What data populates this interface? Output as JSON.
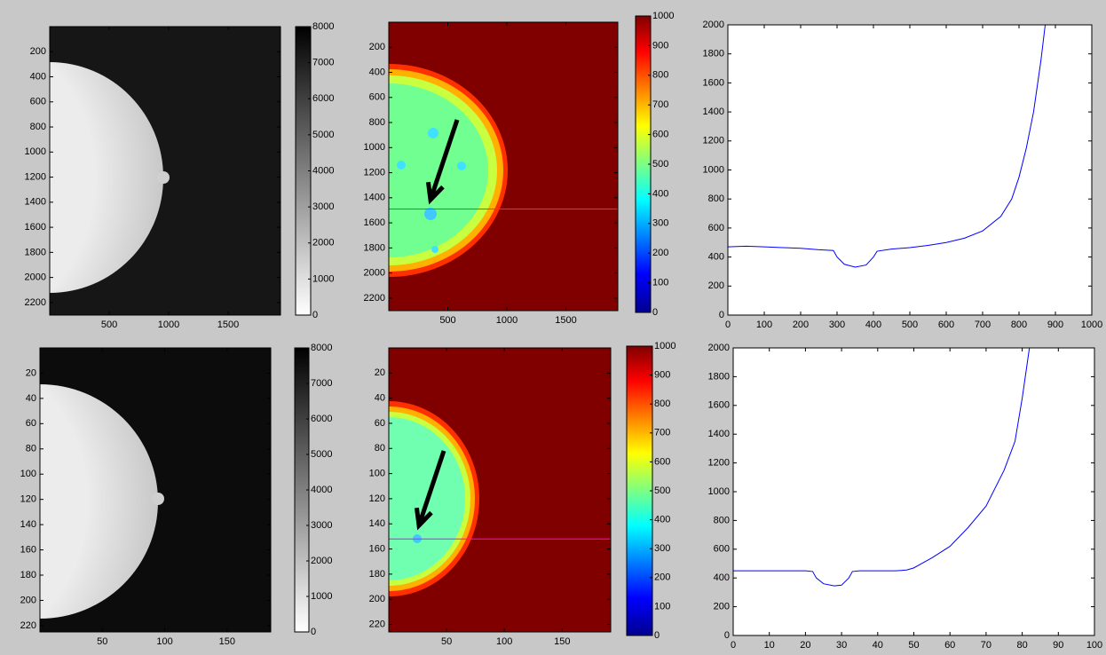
{
  "chart_data": [
    {
      "type": "image",
      "colormap": "gray-reversed",
      "y_reversed": true,
      "xlim": [
        0,
        1940
      ],
      "xticks": [
        500,
        1000,
        1500
      ],
      "ylim": [
        0,
        2300
      ],
      "yticks": [
        200,
        400,
        600,
        800,
        1000,
        1200,
        1400,
        1600,
        1800,
        2000,
        2200
      ],
      "clim": [
        0,
        8000
      ],
      "cticks": [
        0,
        1000,
        2000,
        3000,
        4000,
        5000,
        6000,
        7000,
        8000
      ]
    },
    {
      "type": "image",
      "colormap": "jet",
      "y_reversed": true,
      "xlim": [
        0,
        1940
      ],
      "xticks": [
        500,
        1000,
        1500
      ],
      "ylim": [
        0,
        2300
      ],
      "yticks": [
        200,
        400,
        600,
        800,
        1000,
        1200,
        1400,
        1600,
        1800,
        2000,
        2200
      ],
      "clim": [
        0,
        1000
      ],
      "cticks": [
        0,
        100,
        200,
        300,
        400,
        500,
        600,
        700,
        800,
        900,
        1000
      ],
      "profile_line": {
        "y": 1490,
        "color": "#ff00ff"
      }
    },
    {
      "type": "line",
      "color": "#0000ff",
      "x": [
        0,
        50,
        100,
        150,
        200,
        250,
        290,
        300,
        320,
        350,
        380,
        400,
        410,
        450,
        500,
        550,
        600,
        650,
        700,
        750,
        780,
        800,
        820,
        840,
        860,
        872
      ],
      "values": [
        470,
        475,
        470,
        465,
        460,
        450,
        445,
        400,
        350,
        330,
        345,
        400,
        440,
        455,
        465,
        480,
        500,
        530,
        580,
        680,
        800,
        950,
        1150,
        1400,
        1750,
        2000
      ],
      "xlim": [
        0,
        1000
      ],
      "xticks": [
        0,
        100,
        200,
        300,
        400,
        500,
        600,
        700,
        800,
        900,
        1000
      ],
      "ylim": [
        0,
        2000
      ],
      "yticks": [
        0,
        200,
        400,
        600,
        800,
        1000,
        1200,
        1400,
        1600,
        1800,
        2000
      ]
    },
    {
      "type": "image",
      "colormap": "gray-reversed",
      "y_reversed": true,
      "xlim": [
        0,
        185
      ],
      "xticks": [
        50,
        100,
        150
      ],
      "ylim": [
        0,
        225
      ],
      "yticks": [
        20,
        40,
        60,
        80,
        100,
        120,
        140,
        160,
        180,
        200,
        220
      ],
      "clim": [
        0,
        8000
      ],
      "cticks": [
        0,
        1000,
        2000,
        3000,
        4000,
        5000,
        6000,
        7000,
        8000
      ]
    },
    {
      "type": "image",
      "colormap": "jet",
      "y_reversed": true,
      "xlim": [
        0,
        192
      ],
      "xticks": [
        50,
        100,
        150
      ],
      "ylim": [
        0,
        226
      ],
      "yticks": [
        20,
        40,
        60,
        80,
        100,
        120,
        140,
        160,
        180,
        200,
        220
      ],
      "clim": [
        0,
        1000
      ],
      "cticks": [
        0,
        100,
        200,
        300,
        400,
        500,
        600,
        700,
        800,
        900,
        1000
      ],
      "profile_line": {
        "y": 152,
        "color": "#ff00ff"
      }
    },
    {
      "type": "line",
      "color": "#0000ff",
      "x": [
        0,
        10,
        20,
        22,
        23,
        25,
        28,
        30,
        32,
        33,
        35,
        40,
        45,
        48,
        50,
        55,
        60,
        65,
        70,
        75,
        78,
        80,
        82
      ],
      "values": [
        450,
        450,
        450,
        445,
        400,
        360,
        345,
        350,
        400,
        445,
        450,
        450,
        450,
        455,
        470,
        540,
        620,
        750,
        900,
        1150,
        1350,
        1650,
        2000
      ],
      "xlim": [
        0,
        100
      ],
      "xticks": [
        0,
        10,
        20,
        30,
        40,
        50,
        60,
        70,
        80,
        90,
        100
      ],
      "ylim": [
        0,
        2000
      ],
      "yticks": [
        0,
        200,
        400,
        600,
        800,
        1000,
        1200,
        1400,
        1600,
        1800,
        2000
      ]
    }
  ]
}
